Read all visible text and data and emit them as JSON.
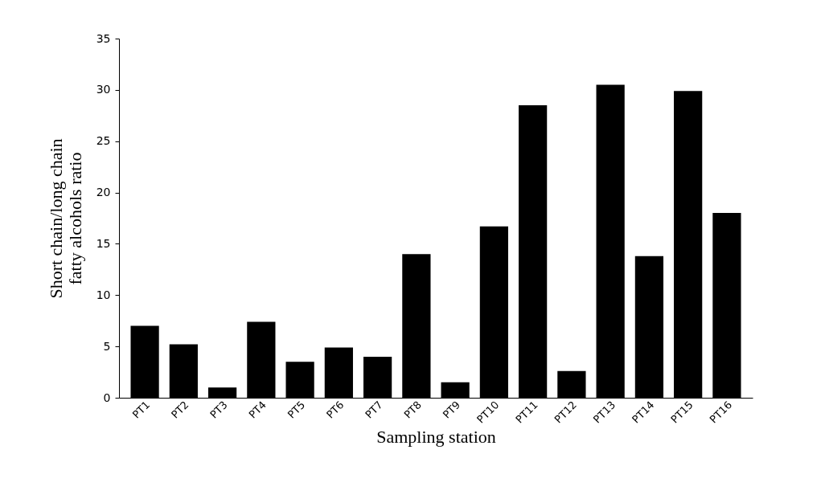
{
  "chart_data": {
    "type": "bar",
    "xlabel": "Sampling station",
    "ylabel": "Short chain/long chain fatty alcohols ratio",
    "categories": [
      "PT1",
      "PT2",
      "PT3",
      "PT4",
      "PT5",
      "PT6",
      "PT7",
      "PT8",
      "PT9",
      "PT10",
      "PT11",
      "PT12",
      "PT13",
      "PT14",
      "PT15",
      "PT16"
    ],
    "values": [
      7.0,
      5.2,
      1.0,
      7.4,
      3.5,
      4.9,
      4.0,
      14.0,
      1.5,
      16.7,
      28.5,
      2.6,
      30.5,
      13.8,
      29.9,
      18.0
    ],
    "color": "#000000",
    "ylim": [
      0,
      35
    ],
    "yticks": [
      0,
      5,
      10,
      15,
      20,
      25,
      30,
      35
    ],
    "grid": false
  }
}
